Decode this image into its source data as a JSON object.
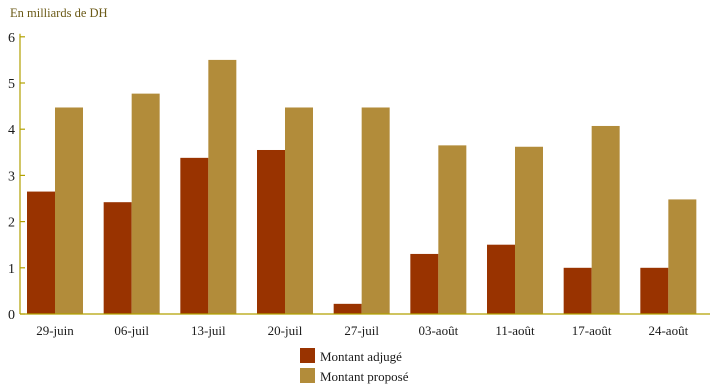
{
  "chart_data": {
    "type": "bar",
    "unit_label": "En milliards de DH",
    "categories": [
      "29-juin",
      "06-juil",
      "13-juil",
      "20-juil",
      "27-juil",
      "03-août",
      "11-août",
      "17-août",
      "24-août"
    ],
    "series": [
      {
        "name": "Montant adjugé",
        "color": "#993300",
        "values": [
          2.65,
          2.42,
          3.38,
          3.55,
          0.22,
          1.3,
          1.5,
          1.0,
          1.0
        ]
      },
      {
        "name": "Montant proposé",
        "color": "#b28c3a",
        "values": [
          4.47,
          4.77,
          5.5,
          4.47,
          4.47,
          3.65,
          3.62,
          4.07,
          2.48
        ]
      }
    ],
    "ylim": [
      0,
      6
    ],
    "yticks": [
      "0",
      "1",
      "2",
      "3",
      "4",
      "5",
      "6"
    ],
    "grid": false,
    "legend_position": "bottom-center",
    "axis_color": "#b2a100"
  }
}
